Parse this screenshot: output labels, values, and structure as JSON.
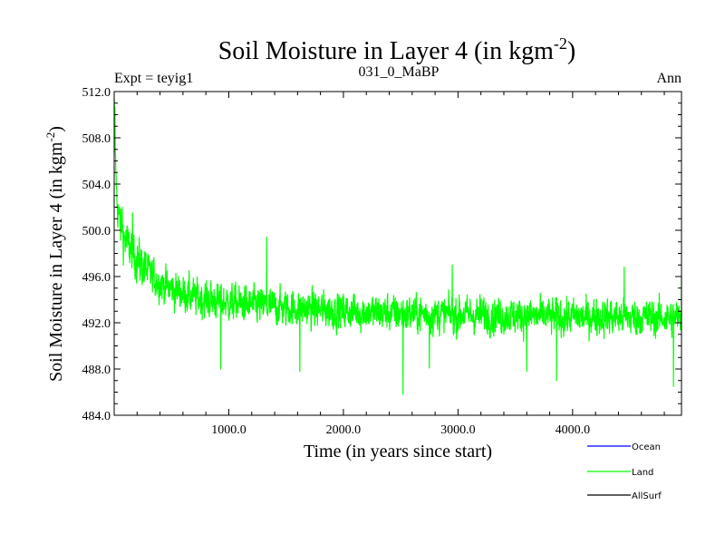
{
  "chart_data": {
    "type": "line",
    "title_main": "Soil Moisture in Layer 4 (in kgm",
    "title_sup": "-2",
    "title_close": ")",
    "subtitle_left": "Expt = teyig1",
    "subtitle_center": "031_0_MaBP",
    "subtitle_right": "Ann",
    "xlabel": "Time (in years since start)",
    "ylabel_main": "Soil Moisture in Layer 4 (in kgm",
    "ylabel_sup": "-2",
    "ylabel_close": ")",
    "xlim": [
      0,
      4950
    ],
    "ylim": [
      484.0,
      512.0
    ],
    "xticks": [
      1000,
      2000,
      3000,
      4000
    ],
    "xtick_labels": [
      "1000.0",
      "2000.0",
      "3000.0",
      "4000.0"
    ],
    "yticks": [
      484,
      488,
      492,
      496,
      500,
      504,
      508,
      512
    ],
    "ytick_labels": [
      "484.0",
      "488.0",
      "492.0",
      "496.0",
      "500.0",
      "504.0",
      "508.0",
      "512.0"
    ],
    "series": [
      {
        "name": "Land",
        "color": "#00ff00",
        "trend": {
          "x": [
            0,
            20,
            50,
            100,
            200,
            300,
            400,
            500,
            700,
            1000,
            1500,
            2000,
            2500,
            3000,
            3500,
            4000,
            4500,
            4950
          ],
          "y": [
            510.5,
            503.0,
            500.5,
            499.0,
            497.5,
            496.3,
            495.5,
            494.9,
            494.2,
            493.7,
            493.3,
            493.0,
            492.8,
            492.7,
            492.6,
            492.5,
            492.5,
            492.4
          ]
        },
        "noise_amplitude": 1.6,
        "min_events": [
          {
            "x": 2520,
            "y": 485.8
          },
          {
            "x": 1620,
            "y": 487.8
          },
          {
            "x": 930,
            "y": 488.0
          },
          {
            "x": 3600,
            "y": 487.8
          },
          {
            "x": 3860,
            "y": 487.0
          },
          {
            "x": 4880,
            "y": 486.5
          },
          {
            "x": 2750,
            "y": 488.1
          }
        ],
        "max_events": [
          {
            "x": 5,
            "y": 510.7
          },
          {
            "x": 15,
            "y": 505.0
          },
          {
            "x": 70,
            "y": 502.0
          },
          {
            "x": 160,
            "y": 501.5
          },
          {
            "x": 1330,
            "y": 499.4
          },
          {
            "x": 2950,
            "y": 497.0
          },
          {
            "x": 4450,
            "y": 496.8
          },
          {
            "x": 4950,
            "y": 496.0
          }
        ]
      },
      {
        "name": "Ocean",
        "color": "#0000ff",
        "values": []
      },
      {
        "name": "AllSurf",
        "color": "#000000",
        "values": []
      }
    ],
    "legend": [
      {
        "label": "Ocean",
        "color": "#0000ff"
      },
      {
        "label": "Land",
        "color": "#00ff00"
      },
      {
        "label": "AllSurf",
        "color": "#000000"
      }
    ]
  }
}
